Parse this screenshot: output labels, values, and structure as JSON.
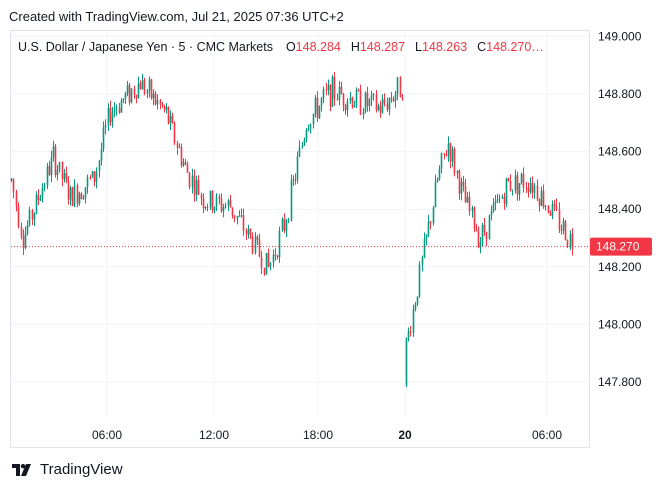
{
  "header": {
    "credit": "Created with TradingView.com, Jul 21, 2025 07:36 UTC+2"
  },
  "legend": {
    "symbol": "U.S. Dollar / Japanese Yen · 5 · CMC Markets",
    "o_label": "O",
    "o_value": "148.284",
    "h_label": "H",
    "h_value": "148.287",
    "l_label": "L",
    "l_value": "148.263",
    "c_label": "C",
    "c_value": "148.270…"
  },
  "footer": {
    "brand": "TradingView",
    "logo_icon": "tradingview-logo-icon"
  },
  "colors": {
    "up": "#089981",
    "down": "#f23645",
    "grid": "#f0f3fa",
    "price_line": "#f23645"
  },
  "chart_data": {
    "type": "candlestick",
    "symbol": "USDJPY",
    "interval": "5",
    "y_ticks": [
      "149.000",
      "148.800",
      "148.600",
      "148.400",
      "148.200",
      "148.000",
      "147.800"
    ],
    "ylim": [
      147.65,
      149.03
    ],
    "x_ticks": [
      "06:00",
      "12:00",
      "18:00",
      "20",
      "06:00"
    ],
    "x_ticks_bold": [
      false,
      false,
      false,
      true,
      false
    ],
    "last_price": "148.270",
    "grid": true,
    "path": [
      [
        148.52,
        148.48
      ],
      [
        148.31,
        148.29
      ],
      [
        148.55,
        148.61
      ],
      [
        148.42,
        148.46
      ],
      [
        148.58,
        148.44
      ],
      [
        148.76,
        148.72
      ],
      [
        148.82,
        148.86
      ],
      [
        148.72,
        148.74
      ],
      [
        148.56,
        148.52
      ],
      [
        148.45,
        148.4
      ],
      [
        148.42,
        148.4
      ],
      [
        148.21,
        148.18
      ],
      [
        148.31,
        148.38
      ],
      [
        148.68,
        148.72
      ],
      [
        148.8,
        148.82
      ],
      [
        148.78,
        148.72
      ],
      [
        148.82,
        148.86
      ],
      [
        148.06,
        147.79
      ],
      [
        148.4,
        148.6
      ],
      [
        148.64,
        148.62
      ],
      [
        148.48,
        148.4
      ],
      [
        148.34,
        148.26
      ],
      [
        148.48,
        148.5
      ],
      [
        148.52,
        148.48
      ],
      [
        148.42,
        148.36
      ],
      [
        148.28,
        148.27
      ]
    ]
  }
}
